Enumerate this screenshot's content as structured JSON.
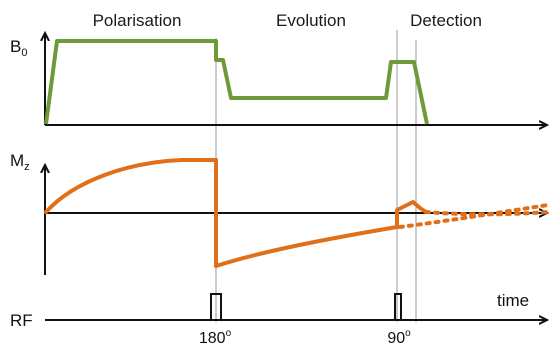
{
  "phases": {
    "polarisation": "Polarisation",
    "evolution": "Evolution",
    "detection": "Detection"
  },
  "axes": {
    "b0": {
      "main": "B",
      "sub": "0"
    },
    "mz": {
      "main": "M",
      "sub": "z"
    },
    "rf": {
      "main": "RF"
    },
    "time": "time"
  },
  "pulses": {
    "first": {
      "value": "180",
      "unit": "o"
    },
    "second": {
      "value": "90",
      "unit": "o"
    }
  },
  "colors": {
    "b0_curve": "#6f9a3a",
    "mz_curve": "#e06f1a",
    "axis": "#111111",
    "guide": "#9a9a9a"
  }
}
